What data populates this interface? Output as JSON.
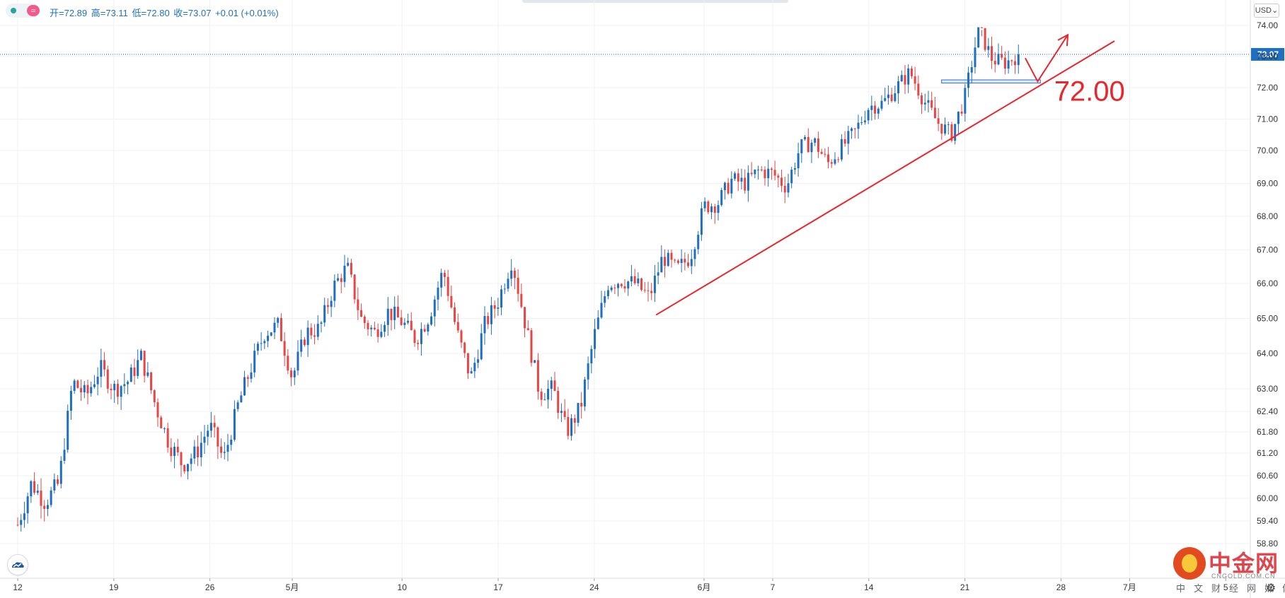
{
  "header": {
    "open_label": "开=72.89",
    "high_label": "高=73.11",
    "low_label": "低=72.80",
    "close_label": "收=73.07",
    "change_label": "+0.01 (+0.01%)",
    "status_symbol": "≈"
  },
  "currency_select": "USD",
  "current_price_label": "73.07",
  "annotation": {
    "level_label": "72.00",
    "level_value": 72.0,
    "color": "#e8272d"
  },
  "watermark": {
    "title": "中金网",
    "subtitle": "CNGOLD.COM.CN",
    "caption": "中文财经网媒体"
  },
  "icons": {
    "logo": "cloud-logo-icon",
    "settings": "gear-icon",
    "dropdown": "chevron-down-icon"
  },
  "colors": {
    "up": "#1f6fc0",
    "down": "#e84545",
    "price_line": "#1f6fc0",
    "trendline": "#e8272d"
  },
  "chart_data": {
    "type": "candlestick",
    "title": "",
    "y_ticks": [
      74.0,
      73.0,
      72.0,
      71.0,
      70.0,
      69.0,
      68.0,
      67.0,
      66.0,
      65.0,
      64.0,
      63.0,
      62.4,
      61.8,
      61.2,
      60.6,
      60.0,
      59.4,
      58.8
    ],
    "y_tick_labels": [
      "74.00",
      "73.00",
      "72.00",
      "71.00",
      "70.00",
      "69.00",
      "68.00",
      "67.00",
      "66.00",
      "65.00",
      "64.00",
      "63.00",
      "62.40",
      "61.80",
      "61.20",
      "60.60",
      "60.00",
      "59.40",
      "58.80"
    ],
    "x_tick_labels": [
      "12",
      "19",
      "26",
      "5月",
      "10",
      "17",
      "24",
      "6月",
      "7",
      "14",
      "21",
      "28",
      "7月",
      "5"
    ],
    "x_tick_days": [
      0,
      7,
      14,
      20,
      28,
      35,
      42,
      50,
      55,
      62,
      69,
      76,
      81,
      88
    ],
    "x_range_days": [
      -1,
      91
    ],
    "last_price": 73.07,
    "anchors": [
      [
        0,
        59.3
      ],
      [
        1,
        60.4
      ],
      [
        2,
        59.9
      ],
      [
        3,
        60.4
      ],
      [
        4,
        63.2
      ],
      [
        5,
        62.8
      ],
      [
        6,
        63.6
      ],
      [
        7,
        63.0
      ],
      [
        8,
        63.2
      ],
      [
        9,
        63.9
      ],
      [
        10,
        62.6
      ],
      [
        11,
        61.5
      ],
      [
        12,
        60.9
      ],
      [
        13,
        61.2
      ],
      [
        14,
        62.0
      ],
      [
        15,
        61.0
      ],
      [
        16,
        62.5
      ],
      [
        17,
        63.6
      ],
      [
        18,
        64.6
      ],
      [
        19,
        64.8
      ],
      [
        20,
        63.3
      ],
      [
        21,
        64.6
      ],
      [
        22,
        64.7
      ],
      [
        23,
        65.9
      ],
      [
        24,
        66.5
      ],
      [
        25,
        65.0
      ],
      [
        26,
        64.6
      ],
      [
        27,
        65.2
      ],
      [
        28,
        64.9
      ],
      [
        29,
        64.4
      ],
      [
        30,
        65.1
      ],
      [
        31,
        66.4
      ],
      [
        32,
        64.6
      ],
      [
        33,
        63.3
      ],
      [
        34,
        64.8
      ],
      [
        35,
        65.5
      ],
      [
        36,
        66.7
      ],
      [
        37,
        64.8
      ],
      [
        38,
        62.9
      ],
      [
        39,
        63.0
      ],
      [
        40,
        61.8
      ],
      [
        41,
        62.5
      ],
      [
        42,
        64.5
      ],
      [
        43,
        66.0
      ],
      [
        44,
        66.1
      ],
      [
        45,
        66.0
      ],
      [
        46,
        65.6
      ],
      [
        47,
        66.8
      ],
      [
        48,
        66.4
      ],
      [
        49,
        66.8
      ],
      [
        50,
        68.3
      ],
      [
        51,
        68.4
      ],
      [
        52,
        69.1
      ],
      [
        53,
        69.0
      ],
      [
        54,
        69.4
      ],
      [
        55,
        69.3
      ],
      [
        56,
        68.9
      ],
      [
        57,
        70.1
      ],
      [
        58,
        70.3
      ],
      [
        59,
        69.6
      ],
      [
        60,
        70.1
      ],
      [
        61,
        70.6
      ],
      [
        62,
        71.4
      ],
      [
        63,
        71.5
      ],
      [
        64,
        72.0
      ],
      [
        65,
        72.5
      ],
      [
        66,
        71.6
      ],
      [
        67,
        70.9
      ],
      [
        68,
        70.5
      ],
      [
        69,
        71.7
      ],
      [
        70,
        73.9
      ],
      [
        71,
        72.9
      ],
      [
        72,
        72.8
      ],
      [
        72.9,
        73.07
      ]
    ],
    "annotations": [
      {
        "type": "trendline",
        "from": {
          "day": 46.5,
          "price": 65.1
        },
        "to": {
          "day": 79.9,
          "price": 73.5
        }
      },
      {
        "type": "zone",
        "from_day": 67.3,
        "to_day": 74.5,
        "top": 72.25,
        "bottom": 72.15
      },
      {
        "type": "arrow",
        "points": [
          {
            "day": 73.4,
            "price": 72.95
          },
          {
            "day": 74.3,
            "price": 72.2
          },
          {
            "day": 76.5,
            "price": 74.3
          }
        ]
      },
      {
        "type": "text",
        "label": "72.00",
        "day": 75.5,
        "price": 71.9
      }
    ]
  }
}
